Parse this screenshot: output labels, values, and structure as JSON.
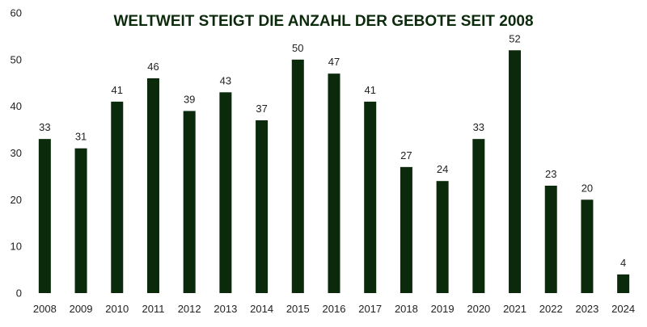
{
  "chart_data": {
    "type": "bar",
    "title": "WELTWEIT STEIGT DIE ANZAHL DER GEBOTE SEIT 2008",
    "xlabel": "",
    "ylabel": "",
    "categories": [
      "2008",
      "2009",
      "2010",
      "2011",
      "2012",
      "2013",
      "2014",
      "2015",
      "2016",
      "2017",
      "2018",
      "2019",
      "2020",
      "2021",
      "2022",
      "2023",
      "2024"
    ],
    "values": [
      33,
      31,
      41,
      46,
      39,
      43,
      37,
      50,
      47,
      41,
      27,
      24,
      33,
      52,
      23,
      20,
      4
    ],
    "ylim": [
      0,
      60
    ],
    "yticks": [
      0,
      10,
      20,
      30,
      40,
      50,
      60
    ],
    "grid": false,
    "legend": "none",
    "bar_color": "#0b2a0b",
    "title_color": "#0c2a0c"
  }
}
